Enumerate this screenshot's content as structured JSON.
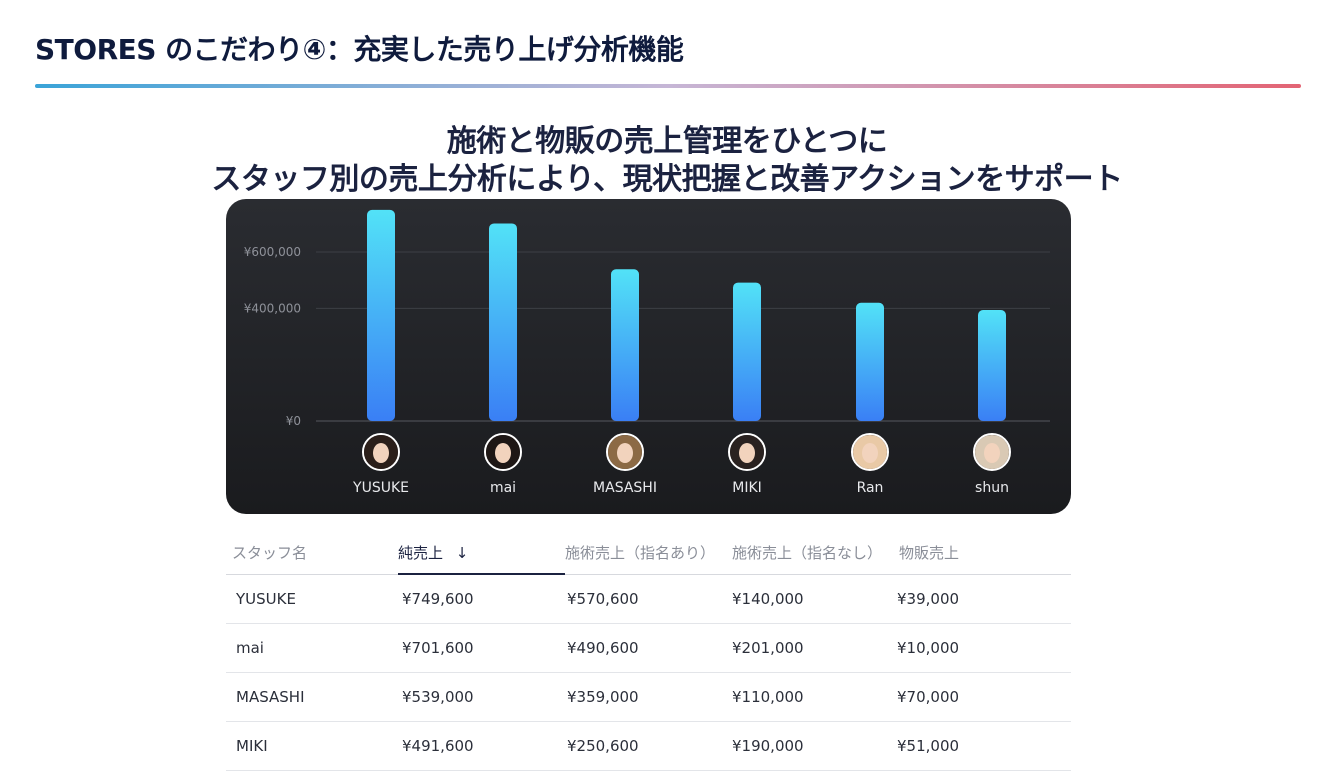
{
  "slide": {
    "title": "STORES のこだわり④：充実した売り上げ分析機能",
    "headline_line1": "施術と物販の売上管理をひとつに",
    "headline_line2": "スタッフ別の売上分析により、現状把握と改善アクションをサポート",
    "accent_gradient": [
      "#3aa4d8",
      "#e36474"
    ]
  },
  "chart_data": {
    "type": "bar",
    "categories": [
      "YUSUKE",
      "mai",
      "MASASHI",
      "MIKI",
      "Ran",
      "shun"
    ],
    "values": [
      749600,
      701600,
      539000,
      491600,
      420000,
      394000
    ],
    "ytick_labels": [
      "¥0",
      "¥400,000",
      "¥600,000"
    ],
    "yticks": [
      0,
      400000,
      600000
    ],
    "ylim": [
      0,
      760000
    ],
    "grid": true,
    "bar_gradient": [
      "#52e2f7",
      "#3a7ff5"
    ],
    "background": "#1f2024"
  },
  "staff": [
    {
      "name": "YUSUKE",
      "hair": "#2b1f1a"
    },
    {
      "name": "mai",
      "hair": "#1e1715"
    },
    {
      "name": "MASASHI",
      "hair": "#8c6a45"
    },
    {
      "name": "MIKI",
      "hair": "#2a2220"
    },
    {
      "name": "Ran",
      "hair": "#e9c9a6"
    },
    {
      "name": "shun",
      "hair": "#d9c9b4"
    }
  ],
  "table": {
    "headers": [
      "スタッフ名",
      "純売上",
      "施術売上（指名あり）",
      "施術売上（指名なし）",
      "物販売上"
    ],
    "sort_indicator": "↓",
    "rows": [
      [
        "YUSUKE",
        "¥749,600",
        "¥570,600",
        "¥140,000",
        "¥39,000"
      ],
      [
        "mai",
        "¥701,600",
        "¥490,600",
        "¥201,000",
        "¥10,000"
      ],
      [
        "MASASHI",
        "¥539,000",
        "¥359,000",
        "¥110,000",
        "¥70,000"
      ],
      [
        "MIKI",
        "¥491,600",
        "¥250,600",
        "¥190,000",
        "¥51,000"
      ]
    ]
  }
}
